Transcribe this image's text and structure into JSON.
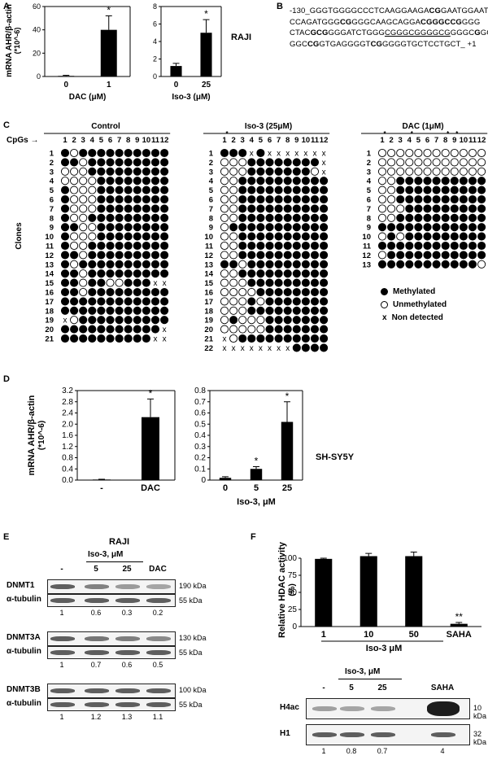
{
  "panels": {
    "A": "A",
    "B": "B",
    "C": "C",
    "D": "D",
    "E": "E",
    "F": "F"
  },
  "chart_data": [
    {
      "id": "A1",
      "type": "bar",
      "categories": [
        "0",
        "1"
      ],
      "values": [
        0.5,
        40
      ],
      "errors": [
        0.5,
        12
      ],
      "significance": [
        "",
        "*"
      ],
      "ylim": [
        0,
        60
      ],
      "yticks": [
        "0",
        "20",
        "40",
        "60"
      ],
      "ylabel": "mRNA AHR/β-actin (*10^-6)",
      "xlabel": "DAC (μM)"
    },
    {
      "id": "A2",
      "type": "bar",
      "categories": [
        "0",
        "25"
      ],
      "values": [
        1.2,
        5
      ],
      "errors": [
        0.3,
        1.5
      ],
      "significance": [
        "",
        "*"
      ],
      "ylim": [
        0,
        8
      ],
      "yticks": [
        "0",
        "2",
        "4",
        "6",
        "8"
      ],
      "xlabel": "Iso-3 (μM)"
    },
    {
      "id": "D1",
      "type": "bar",
      "categories": [
        "-",
        "DAC"
      ],
      "values": [
        0.02,
        2.25
      ],
      "errors": [
        0.01,
        0.65
      ],
      "significance": [
        "",
        "*"
      ],
      "ylim": [
        0,
        3.2
      ],
      "yticks": [
        "0.0",
        "0.4",
        "0.8",
        "1.2",
        "1.6",
        "2.0",
        "2.4",
        "2.8",
        "3.2"
      ],
      "ylabel": "mRNA AHR/β-actin (*10^-6)"
    },
    {
      "id": "D2",
      "type": "bar",
      "categories": [
        "0",
        "5",
        "25"
      ],
      "values": [
        0.02,
        0.1,
        0.52
      ],
      "errors": [
        0.01,
        0.02,
        0.18
      ],
      "significance": [
        "",
        "*",
        "*"
      ],
      "ylim": [
        0,
        0.8
      ],
      "yticks": [
        "0",
        "0.1",
        "0.2",
        "0.3",
        "0.4",
        "0.5",
        "0.6",
        "0.7",
        "0.8"
      ],
      "xlabel": "Iso-3, μM"
    },
    {
      "id": "F1",
      "type": "bar",
      "categories": [
        "1",
        "10",
        "50",
        "SAHA"
      ],
      "values": [
        99,
        103,
        103,
        4
      ],
      "errors": [
        1,
        4,
        6,
        2
      ],
      "significance": [
        "",
        "",
        "",
        "**"
      ],
      "ylim": [
        0,
        100
      ],
      "yticks": [
        "0",
        "25",
        "50",
        "75",
        "100"
      ],
      "ylabel": "Relative HDAC activity (%)",
      "xlabel": "Iso-3 μM"
    }
  ],
  "a_cell_line": "RAJI",
  "d_cell_line": "SH-SY5Y",
  "seq_lines": [
    [
      [
        "-130_GGGTGGGGCCCTCAAGGAAGA",
        0
      ],
      [
        "CG",
        1
      ],
      [
        "GAATGGAAT",
        0
      ]
    ],
    [
      [
        "CCAGATGGG",
        0
      ],
      [
        "C",
        1
      ],
      [
        "G",
        1
      ],
      [
        "GGGCAAGCAGGA",
        0
      ],
      [
        "C",
        1
      ],
      [
        "GGGC",
        1
      ],
      [
        "C",
        1
      ],
      [
        "G",
        1
      ],
      [
        "GGG",
        0
      ]
    ],
    [
      [
        "CTAC",
        0
      ],
      [
        "GCG",
        1
      ],
      [
        "GGGATCTGGG",
        0
      ],
      [
        "CGGGCGGGGCG",
        0
      ],
      [
        "GGGC",
        0
      ],
      [
        "G",
        1
      ],
      [
        "GG",
        0
      ]
    ],
    [
      [
        "GGC",
        0
      ],
      [
        "CG",
        1
      ],
      [
        "GTGAGGGGT",
        0
      ],
      [
        "CG",
        1
      ],
      [
        "GGGGTGCTCCTGCT_ +1",
        0
      ]
    ]
  ],
  "methylation": {
    "cpgs_label": "CpGs →",
    "clones_label": "Clones",
    "cpg_numbers": [
      "1",
      "2",
      "3",
      "4",
      "5",
      "6",
      "7",
      "8",
      "9",
      "10",
      "11",
      "12"
    ],
    "groups": [
      {
        "title": "Control",
        "clones": [
          "1",
          "2",
          "3",
          "4",
          "5",
          "6",
          "7",
          "8",
          "9",
          "10",
          "11",
          "12",
          "13",
          "14",
          "15",
          "16",
          "17",
          "18",
          "19",
          "20",
          "21"
        ]
      },
      {
        "title": "Iso-3 (25μM)",
        "clones": [
          "1",
          "2",
          "3",
          "4",
          "5",
          "6",
          "7",
          "8",
          "9",
          "10",
          "11",
          "12",
          "13",
          "14",
          "15",
          "16",
          "17",
          "18",
          "19",
          "20",
          "21",
          "22"
        ]
      },
      {
        "title": "DAC (1μM)",
        "clones": [
          "1",
          "2",
          "3",
          "4",
          "5",
          "6",
          "7",
          "8",
          "9",
          "10",
          "11",
          "12",
          "13"
        ]
      }
    ],
    "legend": {
      "methylated": "Methylated",
      "unmethylated": "Unmethylated",
      "nondetected": "Non detected"
    }
  },
  "blots_E": {
    "title": "RAJI",
    "treatment": "Iso-3, μM",
    "lanes": [
      "-",
      "5",
      "25",
      "DAC"
    ],
    "sets": [
      {
        "protein": "DNMT1",
        "protein_kda": "190 kDa",
        "loading": "α-tubulin",
        "loading_kda": "55 kDa",
        "densities": [
          "1",
          "0.6",
          "0.3",
          "0.2"
        ]
      },
      {
        "protein": "DNMT3A",
        "protein_kda": "130 kDa",
        "loading": "α-tubulin",
        "loading_kda": "55 kDa",
        "densities": [
          "1",
          "0.7",
          "0.6",
          "0.5"
        ]
      },
      {
        "protein": "DNMT3B",
        "protein_kda": "100 kDa",
        "loading": "α-tubulin",
        "loading_kda": "55 kDa",
        "densities": [
          "1",
          "1.2",
          "1.3",
          "1.1"
        ]
      }
    ]
  },
  "blots_F": {
    "treatment": "Iso-3, μM",
    "lanes": [
      "-",
      "5",
      "25",
      "SAHA"
    ],
    "rows": [
      {
        "label": "H4ac",
        "kda": "10 kDa"
      },
      {
        "label": "H1",
        "kda": "32 kDa"
      }
    ],
    "densities": [
      "1",
      "0.8",
      "0.7",
      "4"
    ]
  }
}
